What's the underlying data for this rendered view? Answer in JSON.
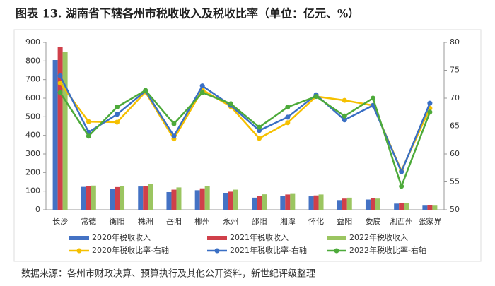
{
  "chart_data": {
    "type": "bar",
    "title": "图表 13. 湖南省下辖各州市税收收入及税收比率（单位：亿元、%）",
    "source": "数据来源：各州市财政决算、预算执行及其他公开资料，新世纪评级整理",
    "categories": [
      "长沙",
      "常德",
      "衡阳",
      "株洲",
      "岳阳",
      "郴州",
      "永州",
      "邵阳",
      "湘潭",
      "怀化",
      "益阳",
      "娄底",
      "湘西州",
      "张家界"
    ],
    "ylim": [
      0,
      900
    ],
    "yticks": [
      0,
      100,
      200,
      300,
      400,
      500,
      600,
      700,
      800,
      900
    ],
    "y2lim": [
      50,
      80
    ],
    "y2ticks": [
      50,
      55,
      60,
      65,
      70,
      75,
      80
    ],
    "series": [
      {
        "name": "2020年税收收入",
        "type": "bar",
        "color": "#4472c4",
        "values": [
          805,
          123,
          113,
          125,
          95,
          105,
          88,
          65,
          75,
          72,
          52,
          55,
          33,
          22
        ]
      },
      {
        "name": "2021年税收收入",
        "type": "bar",
        "color": "#d0404a",
        "values": [
          875,
          127,
          122,
          127,
          108,
          115,
          97,
          75,
          82,
          77,
          60,
          62,
          38,
          25
        ]
      },
      {
        "name": "2022年税收收入",
        "type": "bar",
        "color": "#9bc561",
        "values": [
          850,
          130,
          127,
          137,
          120,
          127,
          108,
          83,
          85,
          82,
          65,
          60,
          37,
          22
        ]
      },
      {
        "name": "2020年税收比率-右轴",
        "type": "line",
        "axis": "y2",
        "color": "#f5c000",
        "values": [
          72.7,
          65.8,
          65.7,
          71.1,
          62.7,
          71.5,
          68.5,
          62.8,
          65.6,
          70.3,
          69.6,
          68.7,
          57,
          68.2
        ]
      },
      {
        "name": "2021年税收比率-右轴",
        "type": "line",
        "axis": "y2",
        "color": "#3a6fc4",
        "values": [
          74,
          63.9,
          67.1,
          71.3,
          63.2,
          72.2,
          68.7,
          64.2,
          66.6,
          70.6,
          66.1,
          68.7,
          56.8,
          69.1
        ]
      },
      {
        "name": "2022年税收比率-右轴",
        "type": "line",
        "axis": "y2",
        "color": "#4daa3a",
        "values": [
          71,
          63.2,
          68.4,
          71.4,
          65.4,
          71,
          69,
          64.8,
          68.4,
          70.3,
          66.8,
          70,
          54.2,
          67.5
        ]
      }
    ]
  }
}
